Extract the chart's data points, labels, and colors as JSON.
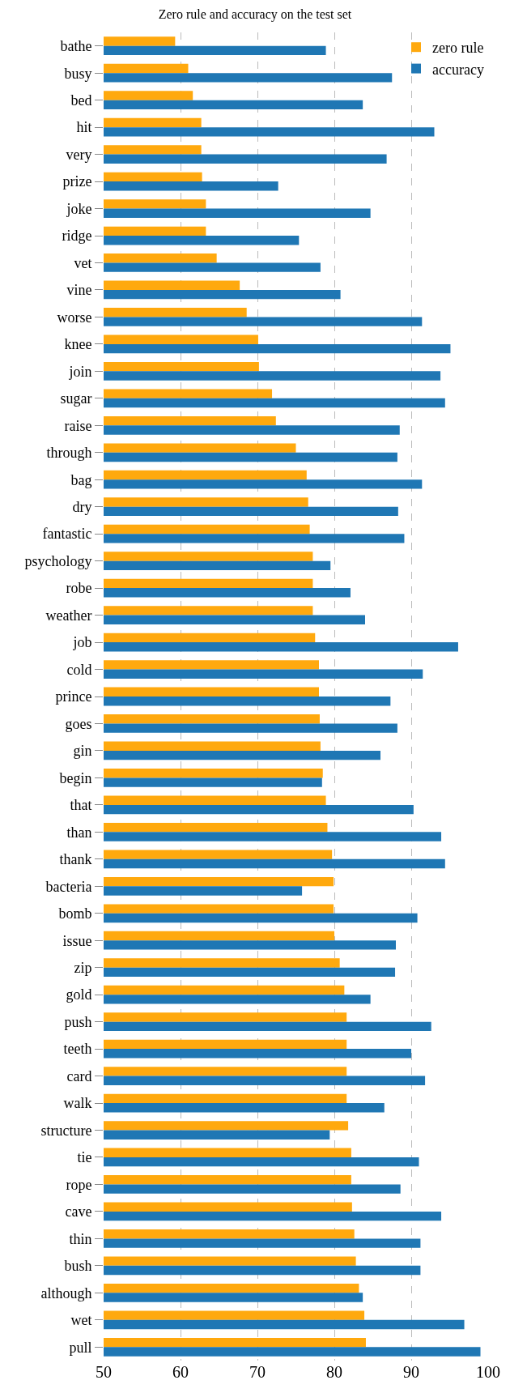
{
  "chart_data": {
    "type": "bar",
    "orientation": "horizontal",
    "title": "Zero rule and accuracy on the test set",
    "categories": [
      "bathe",
      "busy",
      "bed",
      "hit",
      "very",
      "prize",
      "joke",
      "ridge",
      "vet",
      "vine",
      "worse",
      "knee",
      "join",
      "sugar",
      "raise",
      "through",
      "bag",
      "dry",
      "fantastic",
      "psychology",
      "robe",
      "weather",
      "job",
      "cold",
      "prince",
      "goes",
      "gin",
      "begin",
      "that",
      "than",
      "thank",
      "bacteria",
      "bomb",
      "issue",
      "zip",
      "gold",
      "push",
      "teeth",
      "card",
      "walk",
      "structure",
      "tie",
      "rope",
      "cave",
      "thin",
      "bush",
      "although",
      "wet",
      "pull"
    ],
    "series": [
      {
        "name": "zero rule",
        "color": "#ffa90e",
        "values": [
          59.3,
          61.0,
          61.6,
          62.7,
          62.7,
          62.8,
          63.3,
          63.3,
          64.7,
          67.7,
          68.6,
          70.1,
          70.2,
          71.9,
          72.4,
          75.0,
          76.4,
          76.6,
          76.8,
          77.2,
          77.2,
          77.2,
          77.5,
          78.0,
          78.0,
          78.1,
          78.2,
          78.5,
          78.9,
          79.1,
          79.7,
          79.9,
          79.9,
          80.0,
          80.7,
          81.3,
          81.6,
          81.6,
          81.6,
          81.6,
          81.8,
          82.2,
          82.2,
          82.3,
          82.6,
          82.8,
          83.2,
          83.9,
          84.1
        ]
      },
      {
        "name": "accuracy",
        "color": "#1f77b4",
        "values": [
          78.9,
          87.5,
          83.7,
          93.0,
          86.8,
          72.7,
          84.7,
          75.4,
          78.2,
          80.8,
          91.4,
          95.1,
          93.8,
          94.4,
          88.5,
          88.2,
          91.4,
          88.3,
          89.1,
          79.5,
          82.1,
          84.0,
          96.1,
          91.5,
          87.3,
          88.2,
          86.0,
          78.4,
          90.3,
          93.9,
          94.4,
          75.8,
          90.8,
          88.0,
          87.9,
          84.7,
          92.6,
          90.0,
          91.8,
          86.5,
          79.4,
          91.0,
          88.6,
          93.9,
          91.2,
          91.2,
          83.7,
          96.9,
          99.0
        ]
      }
    ],
    "xlim": [
      50,
      100
    ],
    "xticks": [
      50,
      60,
      70,
      80,
      90,
      100
    ],
    "grid": "x",
    "legend": "top right"
  }
}
